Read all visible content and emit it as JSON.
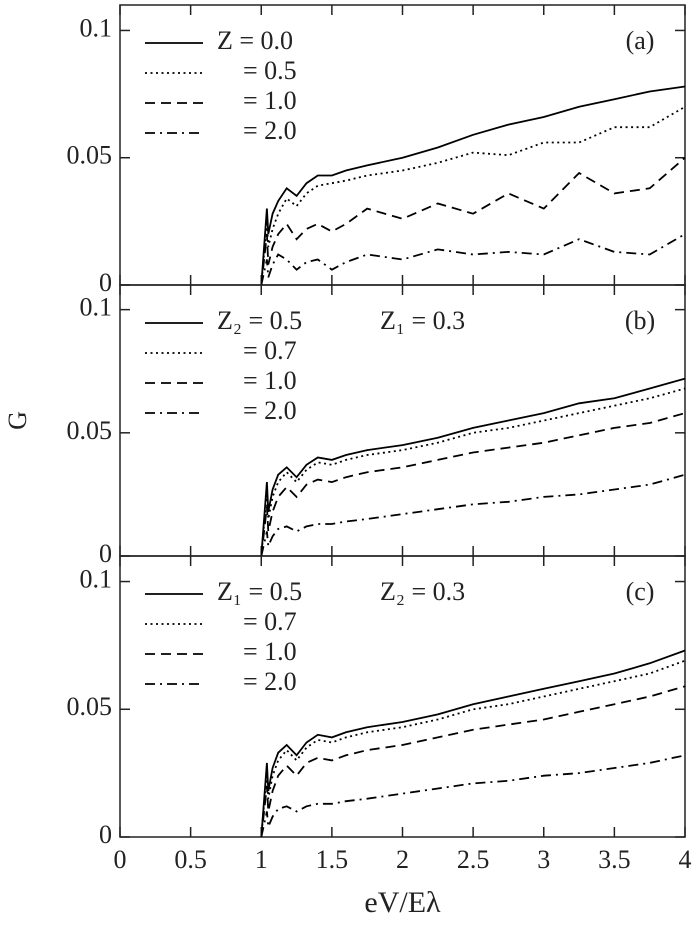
{
  "chart_data": [
    {
      "type": "line",
      "panel_label": "(a)",
      "x": [
        1,
        1.04,
        1.05,
        1.08,
        1.12,
        1.18,
        1.25,
        1.32,
        1.4,
        1.5,
        1.6,
        1.75,
        2.0,
        2.25,
        2.5,
        2.75,
        3.0,
        3.25,
        3.5,
        3.75,
        4.0
      ],
      "series": [
        {
          "name": "Z = 0.0",
          "color": "#000000",
          "style": "solid",
          "values": [
            0,
            0.03,
            0.02,
            0.028,
            0.033,
            0.038,
            0.035,
            0.04,
            0.043,
            0.043,
            0.045,
            0.047,
            0.05,
            0.054,
            0.059,
            0.063,
            0.066,
            0.07,
            0.073,
            0.076,
            0.078
          ]
        },
        {
          "name": "= 0.5",
          "color": "#000000",
          "style": "dotted",
          "values": [
            0,
            0.025,
            0.015,
            0.022,
            0.028,
            0.034,
            0.031,
            0.036,
            0.039,
            0.04,
            0.041,
            0.043,
            0.045,
            0.048,
            0.052,
            0.051,
            0.056,
            0.056,
            0.062,
            0.062,
            0.07
          ]
        },
        {
          "name": "= 1.0",
          "color": "#000000",
          "style": "dashed",
          "values": [
            0,
            0.02,
            0.008,
            0.015,
            0.02,
            0.024,
            0.018,
            0.022,
            0.024,
            0.021,
            0.024,
            0.03,
            0.026,
            0.032,
            0.028,
            0.036,
            0.03,
            0.044,
            0.036,
            0.038,
            0.05
          ]
        },
        {
          "name": "= 2.0",
          "color": "#000000",
          "style": "dashdot",
          "values": [
            0,
            0.01,
            0.003,
            0.008,
            0.012,
            0.01,
            0.006,
            0.009,
            0.01,
            0.006,
            0.009,
            0.012,
            0.01,
            0.014,
            0.012,
            0.013,
            0.012,
            0.018,
            0.013,
            0.012,
            0.02
          ]
        }
      ],
      "xlim": [
        0,
        4
      ],
      "xticks": [
        0,
        0.5,
        1,
        1.5,
        2,
        2.5,
        3,
        3.5,
        4
      ],
      "ylim": [
        0,
        0.11
      ],
      "yticks": [
        0,
        0.05,
        0.1
      ],
      "grid": false,
      "legend": "upper left"
    },
    {
      "type": "line",
      "panel_label": "(b)",
      "annotation": "Z₁ = 0.3",
      "y_label": "G",
      "x": [
        1,
        1.04,
        1.05,
        1.08,
        1.12,
        1.18,
        1.25,
        1.32,
        1.4,
        1.5,
        1.6,
        1.75,
        2.0,
        2.25,
        2.5,
        2.75,
        3.0,
        3.25,
        3.5,
        3.75,
        4.0
      ],
      "series": [
        {
          "name": "Z₂ = 0.5",
          "color": "#000000",
          "style": "solid",
          "values": [
            0,
            0.03,
            0.018,
            0.027,
            0.033,
            0.036,
            0.032,
            0.037,
            0.04,
            0.039,
            0.041,
            0.043,
            0.045,
            0.048,
            0.052,
            0.055,
            0.058,
            0.062,
            0.064,
            0.068,
            0.072
          ]
        },
        {
          "name": "= 0.7",
          "color": "#000000",
          "style": "dotted",
          "values": [
            0,
            0.026,
            0.015,
            0.024,
            0.03,
            0.034,
            0.03,
            0.035,
            0.038,
            0.037,
            0.039,
            0.041,
            0.043,
            0.046,
            0.05,
            0.052,
            0.055,
            0.058,
            0.061,
            0.064,
            0.068
          ]
        },
        {
          "name": "= 1.0",
          "color": "#000000",
          "style": "dashed",
          "values": [
            0,
            0.02,
            0.01,
            0.018,
            0.024,
            0.028,
            0.024,
            0.029,
            0.031,
            0.03,
            0.032,
            0.034,
            0.036,
            0.039,
            0.042,
            0.044,
            0.046,
            0.049,
            0.052,
            0.054,
            0.058
          ]
        },
        {
          "name": "= 2.0",
          "color": "#000000",
          "style": "dashdot",
          "values": [
            0,
            0.01,
            0.004,
            0.008,
            0.011,
            0.012,
            0.01,
            0.012,
            0.013,
            0.013,
            0.014,
            0.015,
            0.017,
            0.019,
            0.021,
            0.022,
            0.024,
            0.025,
            0.027,
            0.029,
            0.033
          ]
        }
      ],
      "xlim": [
        0,
        4
      ],
      "xticks": [
        0,
        0.5,
        1,
        1.5,
        2,
        2.5,
        3,
        3.5,
        4
      ],
      "ylim": [
        0,
        0.11
      ],
      "yticks": [
        0,
        0.05,
        0.1
      ],
      "grid": false,
      "legend": "upper left"
    },
    {
      "type": "line",
      "panel_label": "(c)",
      "annotation": "Z₂ = 0.3",
      "x_label": "eV/Eλ",
      "x": [
        1,
        1.04,
        1.05,
        1.08,
        1.12,
        1.18,
        1.25,
        1.32,
        1.4,
        1.5,
        1.6,
        1.75,
        2.0,
        2.25,
        2.5,
        2.75,
        3.0,
        3.25,
        3.5,
        3.75,
        4.0
      ],
      "series": [
        {
          "name": "Z₁ = 0.5",
          "color": "#000000",
          "style": "solid",
          "values": [
            0,
            0.029,
            0.018,
            0.027,
            0.033,
            0.036,
            0.032,
            0.037,
            0.04,
            0.039,
            0.041,
            0.043,
            0.045,
            0.048,
            0.052,
            0.055,
            0.058,
            0.061,
            0.064,
            0.068,
            0.073
          ]
        },
        {
          "name": "= 0.7",
          "color": "#000000",
          "style": "dotted",
          "values": [
            0,
            0.026,
            0.015,
            0.024,
            0.03,
            0.034,
            0.03,
            0.035,
            0.038,
            0.037,
            0.039,
            0.041,
            0.043,
            0.046,
            0.05,
            0.052,
            0.055,
            0.058,
            0.061,
            0.064,
            0.069
          ]
        },
        {
          "name": "= 1.0",
          "color": "#000000",
          "style": "dashed",
          "values": [
            0,
            0.02,
            0.01,
            0.018,
            0.024,
            0.028,
            0.024,
            0.029,
            0.031,
            0.03,
            0.032,
            0.034,
            0.036,
            0.039,
            0.042,
            0.044,
            0.046,
            0.049,
            0.052,
            0.055,
            0.059
          ]
        },
        {
          "name": "= 2.0",
          "color": "#000000",
          "style": "dashdot",
          "values": [
            0,
            0.01,
            0.004,
            0.008,
            0.011,
            0.012,
            0.01,
            0.012,
            0.013,
            0.013,
            0.014,
            0.015,
            0.017,
            0.019,
            0.021,
            0.022,
            0.024,
            0.025,
            0.027,
            0.029,
            0.032
          ]
        }
      ],
      "xlim": [
        0,
        4
      ],
      "xticks": [
        0,
        0.5,
        1,
        1.5,
        2,
        2.5,
        3,
        3.5,
        4
      ],
      "ylim": [
        0,
        0.11
      ],
      "yticks": [
        0,
        0.05,
        0.1
      ],
      "grid": false,
      "legend": "upper left"
    }
  ]
}
